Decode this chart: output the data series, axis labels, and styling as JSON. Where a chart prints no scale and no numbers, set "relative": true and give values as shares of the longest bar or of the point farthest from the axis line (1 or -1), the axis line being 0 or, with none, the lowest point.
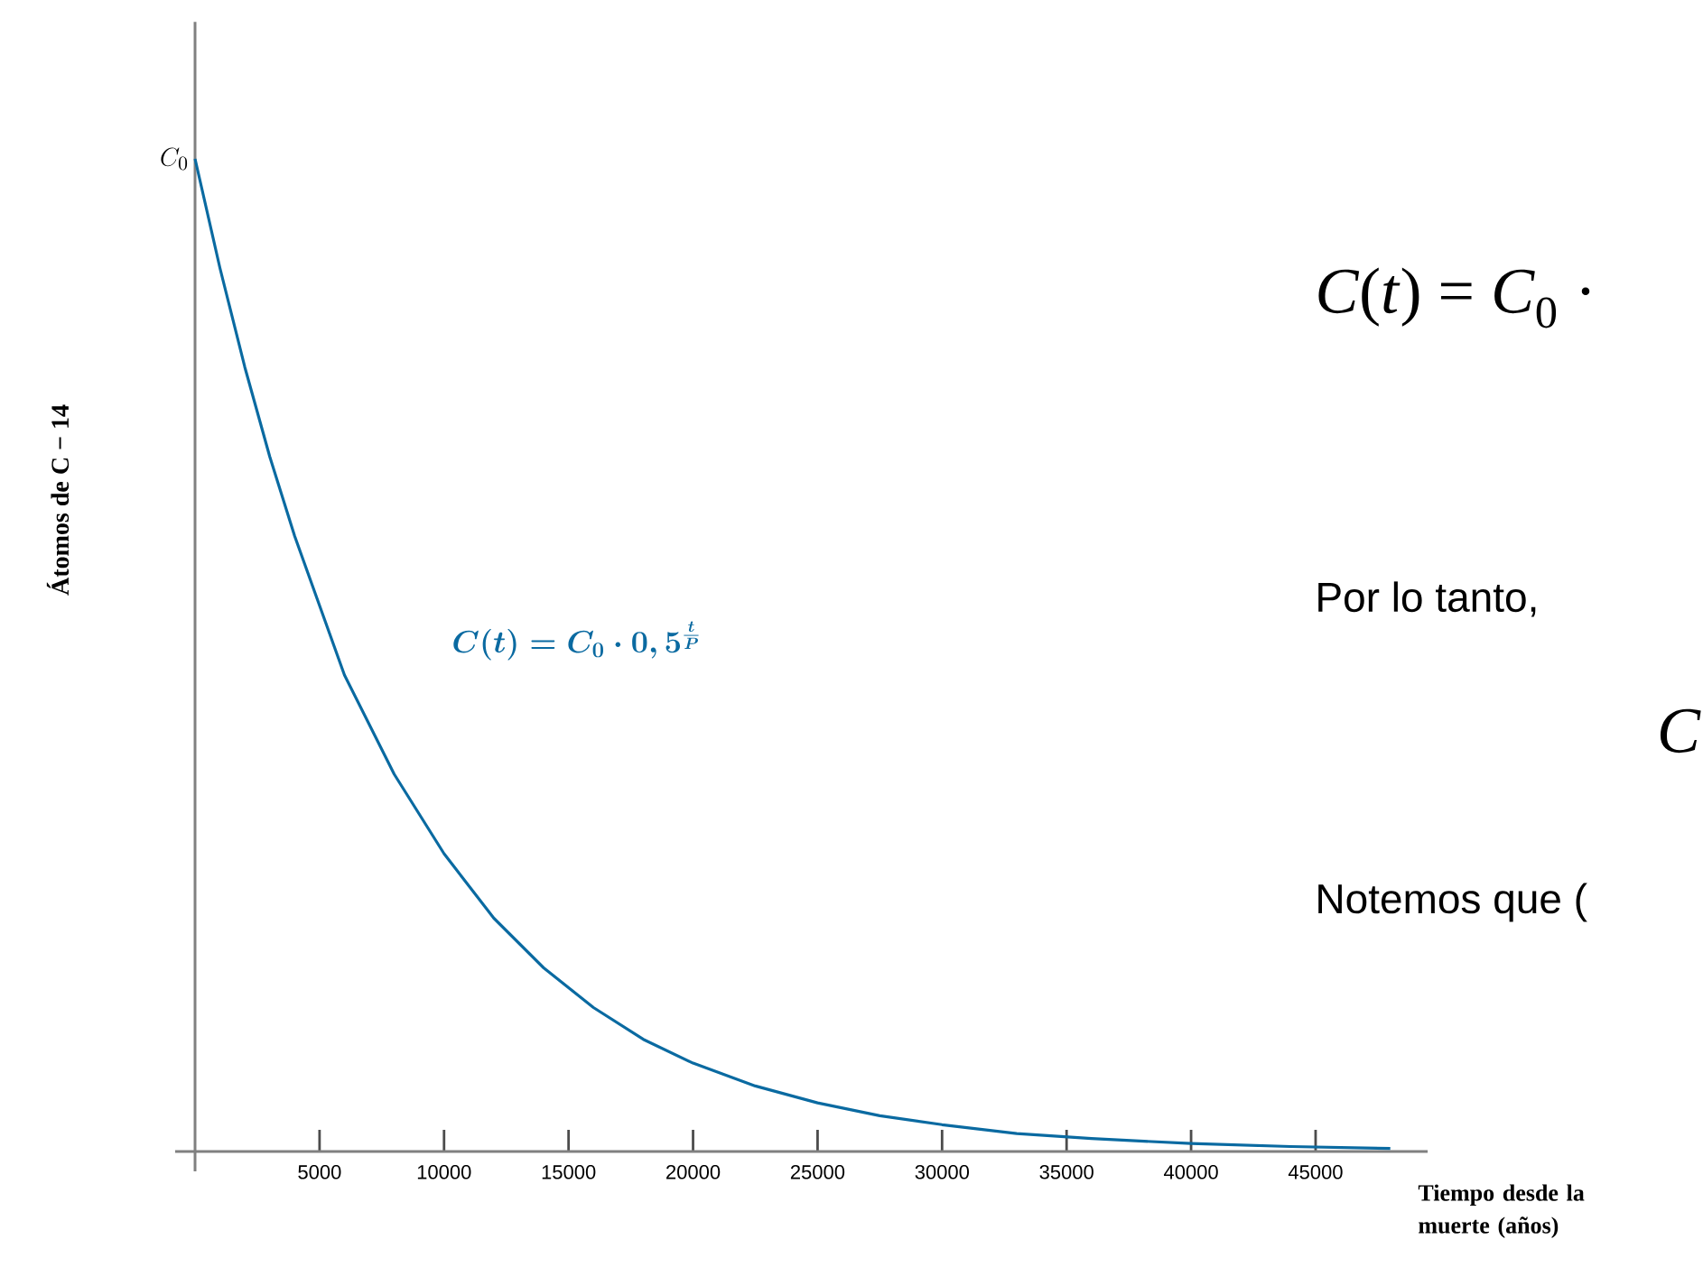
{
  "chart_data": {
    "type": "line",
    "relative": true,
    "xlabel": "Tiempo desde la muerte (años)",
    "ylabel": "Átomos de C − 14",
    "color": "#0a6aa1",
    "x": [
      0,
      1000,
      2000,
      3000,
      4000,
      5000,
      6000,
      7000,
      8000,
      9000,
      10000,
      12000,
      14000,
      16000,
      18000,
      20000,
      22500,
      25000,
      27500,
      30000,
      33000,
      36000,
      40000,
      44000,
      48000
    ],
    "values": [
      1,
      0.89,
      0.79,
      0.7,
      0.62,
      0.55,
      0.48,
      0.43,
      0.38,
      0.34,
      0.3,
      0.235,
      0.185,
      0.145,
      0.113,
      0.089,
      0.066,
      0.049,
      0.036,
      0.027,
      0.018,
      0.013,
      0.008,
      0.005,
      0.003
    ],
    "xlim": [
      -800,
      49500
    ],
    "xticks": [
      5000,
      10000,
      15000,
      20000,
      25000,
      30000,
      35000,
      40000,
      45000
    ],
    "annotations": [
      {
        "text": "C_0",
        "x": 0,
        "y": 1
      },
      "C(t) = C_0 \\cdot 0,5^{\\frac{t}{P}}",
      "*C*(*t*) = *C*$_{0}$ ·",
      "Por lo tanto,",
      "*C*",
      "Notemos que ("
    ]
  }
}
